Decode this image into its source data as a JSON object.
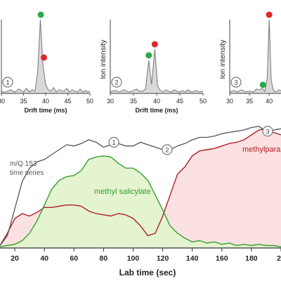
{
  "figure": {
    "palette": {
      "total": "#555555",
      "salicylate": "#33a02c",
      "salicylate_fill": "#e3f3cf",
      "paraben": "#b0202a",
      "paraben_fill": "#fbe1e1",
      "peak_fill": "#d9d9d9",
      "green_dot": "#2ca84a",
      "red_dot": "#e0262b",
      "ion_axis": "#444444"
    }
  },
  "chart_data": [
    {
      "type": "line",
      "panel": 1,
      "xlabel": "Drift time (ms)",
      "ylabel": "",
      "xlim": [
        30,
        50
      ],
      "xticks": [
        "30",
        "35",
        "40",
        "45",
        "50"
      ],
      "marker": "1",
      "series": [
        {
          "name": "",
          "x": [
            30,
            31,
            32,
            33,
            34,
            35,
            35.7,
            36.3,
            37,
            37.6,
            38.2,
            38.8,
            39.4,
            40,
            40.6,
            41.2,
            41.8,
            42.4,
            43,
            43.6,
            44.2,
            44.8,
            45.4,
            46,
            46.6,
            47.2,
            47.8,
            48.4,
            49,
            49.6,
            50
          ],
          "y": [
            0.02,
            0.02,
            0.05,
            0.02,
            0.06,
            0.02,
            0.07,
            0.02,
            0.05,
            0.03,
            0.3,
            1.0,
            0.38,
            0.12,
            0.05,
            0.03,
            0.08,
            0.02,
            0.05,
            0.04,
            0.03,
            0.07,
            0.02,
            0.05,
            0.03,
            0.02,
            0.06,
            0.02,
            0.04,
            0.02,
            0.03
          ]
        }
      ],
      "dots": [
        {
          "x": 38.9,
          "y": 1.0,
          "color": "green"
        },
        {
          "x": 39.6,
          "y": 0.42,
          "color": "red"
        }
      ]
    },
    {
      "type": "line",
      "panel": 2,
      "xlabel": "Drift time (ms)",
      "ylabel": "Ion intensity",
      "xlim": [
        30,
        50
      ],
      "xticks": [
        "30",
        "35",
        "40",
        "45",
        "50"
      ],
      "marker": "2",
      "series": [
        {
          "name": "",
          "x": [
            30,
            31,
            32,
            33,
            34,
            35,
            35.7,
            36.3,
            37,
            37.6,
            38.3,
            38.9,
            39.6,
            40.2,
            40.8,
            41.4,
            42,
            42.6,
            43.2,
            43.8,
            44.4,
            45,
            45.6,
            46.2,
            46.8,
            47.4,
            48,
            48.6,
            49.2,
            50
          ],
          "y": [
            0.02,
            0.04,
            0.02,
            0.05,
            0.02,
            0.04,
            0.06,
            0.03,
            0.03,
            0.06,
            0.45,
            0.12,
            0.6,
            0.1,
            0.04,
            0.02,
            0.05,
            0.03,
            0.02,
            0.05,
            0.03,
            0.02,
            0.04,
            0.02,
            0.05,
            0.02,
            0.03,
            0.04,
            0.02,
            0.03
          ]
        }
      ],
      "dots": [
        {
          "x": 38.3,
          "y": 0.45,
          "color": "green"
        },
        {
          "x": 39.6,
          "y": 0.6,
          "color": "red"
        }
      ]
    },
    {
      "type": "line",
      "panel": 3,
      "xlabel": "",
      "ylabel": "Ion intensity",
      "xlim": [
        30,
        50
      ],
      "xticks": [
        "30",
        "35",
        "40"
      ],
      "marker": "3",
      "series": [
        {
          "name": "",
          "x": [
            30,
            31,
            32,
            33,
            34,
            35,
            36,
            36.8,
            37.5,
            38.2,
            38.9,
            39.5,
            40,
            40.5,
            41.1,
            41.8,
            42.5,
            43.2,
            44,
            45,
            46,
            47,
            48,
            49,
            50
          ],
          "y": [
            0.02,
            0.04,
            0.02,
            0.05,
            0.02,
            0.03,
            0.02,
            0.06,
            0.05,
            0.07,
            0.03,
            0.2,
            1.0,
            0.18,
            0.04,
            0.02,
            0.05,
            0.03,
            0.02,
            0.04,
            0.02,
            0.03,
            0.02,
            0.04,
            0.02
          ]
        }
      ],
      "dots": [
        {
          "x": 38.4,
          "y": 0.05,
          "color": "green"
        },
        {
          "x": 40.0,
          "y": 1.0,
          "color": "red"
        }
      ]
    },
    {
      "type": "area",
      "panel": "main",
      "title": "",
      "xlabel": "Lab time (sec)",
      "ylabel": "",
      "xlim": [
        10,
        200
      ],
      "ylim": [
        0,
        100
      ],
      "xticks": [
        "20",
        "40",
        "60",
        "80",
        "100",
        "120",
        "140",
        "160",
        "180",
        "20"
      ],
      "annotations": {
        "total_label_1": "m/Q 153",
        "total_label_2": "time series",
        "salicylate_label": "methyl salicylate",
        "paraben_label": "methylparaben"
      },
      "markers": [
        {
          "label": "1",
          "x": 87,
          "y": 86
        },
        {
          "label": "2",
          "x": 123,
          "y": 80
        },
        {
          "label": "3",
          "x": 191,
          "y": 95
        }
      ],
      "series": [
        {
          "name": "m/Q 153 time series",
          "x": [
            10,
            15,
            20,
            25,
            30,
            35,
            40,
            45,
            50,
            55,
            60,
            65,
            70,
            75,
            80,
            85,
            90,
            95,
            100,
            105,
            110,
            115,
            120,
            125,
            130,
            135,
            140,
            145,
            150,
            155,
            160,
            165,
            170,
            175,
            180,
            185,
            190,
            195,
            200
          ],
          "y": [
            2,
            10,
            32,
            54,
            65,
            70,
            72,
            76,
            80,
            84,
            83,
            85,
            88,
            86,
            82,
            84,
            85,
            83,
            83,
            86,
            84,
            82,
            80,
            80,
            83,
            85,
            88,
            90,
            90,
            91,
            93,
            94,
            95,
            96,
            98,
            99,
            95,
            96,
            97
          ]
        },
        {
          "name": "methyl salicylate",
          "x": [
            10,
            15,
            20,
            25,
            30,
            35,
            40,
            45,
            50,
            55,
            60,
            65,
            70,
            75,
            80,
            85,
            90,
            95,
            100,
            105,
            110,
            115,
            120,
            125,
            130,
            135,
            140,
            145,
            150,
            155,
            160,
            165,
            170,
            175,
            180,
            185,
            190,
            195,
            200
          ],
          "y": [
            1,
            2,
            3,
            6,
            12,
            22,
            35,
            48,
            55,
            58,
            59,
            63,
            72,
            74,
            75,
            74,
            69,
            65,
            65,
            61,
            55,
            43,
            31,
            18,
            12,
            8,
            5,
            6,
            4,
            5,
            3,
            4,
            2,
            3,
            2,
            3,
            2,
            2,
            1
          ]
        },
        {
          "name": "methylparaben",
          "x": [
            10,
            15,
            20,
            25,
            30,
            35,
            40,
            45,
            50,
            55,
            60,
            65,
            70,
            75,
            80,
            85,
            90,
            95,
            100,
            105,
            110,
            115,
            120,
            125,
            130,
            135,
            140,
            145,
            150,
            155,
            160,
            165,
            170,
            175,
            180,
            185,
            190,
            195,
            200
          ],
          "y": [
            2,
            12,
            24,
            28,
            26,
            29,
            33,
            33,
            34,
            35,
            35,
            34,
            30,
            28,
            27,
            26,
            28,
            27,
            24,
            18,
            10,
            12,
            26,
            43,
            60,
            66,
            75,
            79,
            80,
            81,
            83,
            85,
            86,
            88,
            92,
            96,
            97,
            94,
            92
          ]
        }
      ]
    }
  ]
}
